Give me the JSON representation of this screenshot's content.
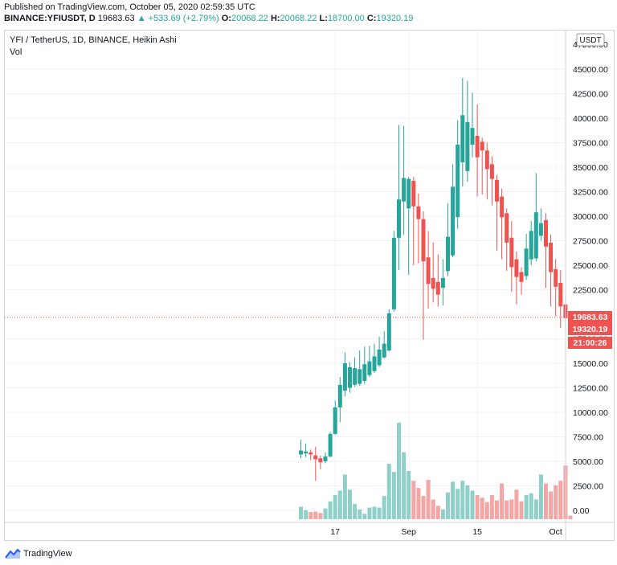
{
  "header": {
    "published": "Published on TradingView.com, October 05, 2020 02:59:35 UTC",
    "symbol": "BINANCE:YFIUSDT, D",
    "last": "19683.63",
    "change": "▲ +533.69 (+2.79%)",
    "open_label": "O:",
    "open": "20068.22",
    "high_label": "H:",
    "high": "20068.22",
    "low_label": "L:",
    "low": "18700.00",
    "close_label": "C:",
    "close": "19320.19"
  },
  "legend": {
    "title": "YFI / TetherUS, 1D, BINANCE, Heikin Ashi",
    "vol": "Vol"
  },
  "axis": {
    "currency": "USDT",
    "price_badge": "19683.63",
    "close_badge": "19320.19",
    "countdown_badge": "21:00:26"
  },
  "colors": {
    "up": "#26a69a",
    "down": "#ef5350",
    "up_vol": "#8fd0c8",
    "down_vol": "#f3a6a4",
    "grid": "#f0f3fa",
    "text": "#131722"
  },
  "footer": {
    "brand": "TradingView",
    "icon": "tradingview-logo-icon"
  },
  "chart_data": {
    "type": "candlestick",
    "style": "Heikin Ashi",
    "ylim": [
      -2000,
      47500
    ],
    "yticks": [
      0,
      2500,
      5000,
      7500,
      10000,
      12500,
      15000,
      17500,
      20000,
      22500,
      25000,
      27500,
      30000,
      32500,
      35000,
      37500,
      40000,
      42500,
      45000
    ],
    "ytick_labels": [
      "0.00",
      "2500.00",
      "5000.00",
      "7500.00",
      "10000.00",
      "12500.00",
      "15000.00",
      "17500.00",
      "20000.00",
      "22500.00",
      "25000.00",
      "27500.00",
      "30000.00",
      "32500.00",
      "35000.00",
      "37500.00",
      "40000.00",
      "42500.00",
      "45000.00"
    ],
    "y_top_partial": "47500.00",
    "xticks": [
      {
        "day": 17,
        "label": "17"
      },
      {
        "day": 32,
        "label": "Sep"
      },
      {
        "day": 46,
        "label": "15"
      },
      {
        "day": 62,
        "label": "Oct"
      }
    ],
    "last_price": 19683.63,
    "grid": true,
    "candles": [
      {
        "d": 10,
        "o": 5700,
        "h": 7200,
        "l": 5300,
        "c": 6100,
        "v": 1400
      },
      {
        "d": 11,
        "o": 5800,
        "h": 6800,
        "l": 5400,
        "c": 6000,
        "v": 1000
      },
      {
        "d": 12,
        "o": 5900,
        "h": 6200,
        "l": 5100,
        "c": 5700,
        "v": 800
      },
      {
        "d": 13,
        "o": 5600,
        "h": 6500,
        "l": 3000,
        "c": 5200,
        "v": 850
      },
      {
        "d": 14,
        "o": 5300,
        "h": 5600,
        "l": 4200,
        "c": 4900,
        "v": 700
      },
      {
        "d": 15,
        "o": 5000,
        "h": 5900,
        "l": 4800,
        "c": 5500,
        "v": 1200
      },
      {
        "d": 16,
        "o": 5500,
        "h": 8000,
        "l": 5400,
        "c": 7800,
        "v": 2000
      },
      {
        "d": 17,
        "o": 7800,
        "h": 11200,
        "l": 7700,
        "c": 10500,
        "v": 2700
      },
      {
        "d": 18,
        "o": 10500,
        "h": 13600,
        "l": 9000,
        "c": 12800,
        "v": 3200
      },
      {
        "d": 19,
        "o": 12200,
        "h": 16100,
        "l": 11600,
        "c": 15000,
        "v": 5000
      },
      {
        "d": 20,
        "o": 12500,
        "h": 15100,
        "l": 12000,
        "c": 14600,
        "v": 3300
      },
      {
        "d": 21,
        "o": 12800,
        "h": 15600,
        "l": 12600,
        "c": 14500,
        "v": 1700
      },
      {
        "d": 22,
        "o": 12900,
        "h": 16300,
        "l": 12700,
        "c": 14400,
        "v": 1100
      },
      {
        "d": 23,
        "o": 13200,
        "h": 16700,
        "l": 12900,
        "c": 14900,
        "v": 600
      },
      {
        "d": 24,
        "o": 13800,
        "h": 16800,
        "l": 13600,
        "c": 15200,
        "v": 1300
      },
      {
        "d": 25,
        "o": 14200,
        "h": 17000,
        "l": 14000,
        "c": 15700,
        "v": 1400
      },
      {
        "d": 26,
        "o": 14800,
        "h": 17700,
        "l": 14600,
        "c": 16400,
        "v": 1300
      },
      {
        "d": 27,
        "o": 15600,
        "h": 18300,
        "l": 15500,
        "c": 17000,
        "v": 2600
      },
      {
        "d": 28,
        "o": 16300,
        "h": 20500,
        "l": 16200,
        "c": 20100,
        "v": 6200
      },
      {
        "d": 29,
        "o": 20500,
        "h": 28500,
        "l": 20300,
        "c": 27800,
        "v": 5300
      },
      {
        "d": 30,
        "o": 27800,
        "h": 39300,
        "l": 24500,
        "c": 31700,
        "v": 10800
      },
      {
        "d": 31,
        "o": 31500,
        "h": 39200,
        "l": 28100,
        "c": 33900,
        "v": 7500
      },
      {
        "d": 32,
        "o": 30800,
        "h": 34000,
        "l": 24000,
        "c": 33800,
        "v": 5400
      },
      {
        "d": 33,
        "o": 33600,
        "h": 34000,
        "l": 25000,
        "c": 31000,
        "v": 4300
      },
      {
        "d": 34,
        "o": 31000,
        "h": 32300,
        "l": 25200,
        "c": 29700,
        "v": 3500
      },
      {
        "d": 35,
        "o": 29700,
        "h": 30500,
        "l": 17400,
        "c": 25400,
        "v": 2600
      },
      {
        "d": 36,
        "o": 25800,
        "h": 28500,
        "l": 20600,
        "c": 23100,
        "v": 4400
      },
      {
        "d": 37,
        "o": 23700,
        "h": 27300,
        "l": 21200,
        "c": 22600,
        "v": 2200
      },
      {
        "d": 38,
        "o": 23300,
        "h": 26100,
        "l": 20800,
        "c": 22000,
        "v": 1500
      },
      {
        "d": 39,
        "o": 22700,
        "h": 25600,
        "l": 20900,
        "c": 23700,
        "v": 1100
      },
      {
        "d": 40,
        "o": 24400,
        "h": 31300,
        "l": 23900,
        "c": 27900,
        "v": 3000
      },
      {
        "d": 41,
        "o": 26000,
        "h": 35300,
        "l": 25800,
        "c": 33000,
        "v": 4200
      },
      {
        "d": 42,
        "o": 29900,
        "h": 39800,
        "l": 28700,
        "c": 37300,
        "v": 3400
      },
      {
        "d": 43,
        "o": 35500,
        "h": 44100,
        "l": 33000,
        "c": 40300,
        "v": 4300
      },
      {
        "d": 44,
        "o": 34600,
        "h": 43800,
        "l": 33500,
        "c": 39600,
        "v": 3800
      },
      {
        "d": 45,
        "o": 37300,
        "h": 42600,
        "l": 36000,
        "c": 39000,
        "v": 3200
      },
      {
        "d": 46,
        "o": 38200,
        "h": 41400,
        "l": 32000,
        "c": 36000,
        "v": 2700
      },
      {
        "d": 47,
        "o": 37600,
        "h": 38000,
        "l": 32200,
        "c": 36700,
        "v": 2400
      },
      {
        "d": 48,
        "o": 36700,
        "h": 37500,
        "l": 31700,
        "c": 34800,
        "v": 1900
      },
      {
        "d": 49,
        "o": 35300,
        "h": 36100,
        "l": 31100,
        "c": 33800,
        "v": 2700
      },
      {
        "d": 50,
        "o": 33700,
        "h": 34200,
        "l": 26500,
        "c": 31500,
        "v": 2100
      },
      {
        "d": 51,
        "o": 32000,
        "h": 32800,
        "l": 25600,
        "c": 29900,
        "v": 4000
      },
      {
        "d": 52,
        "o": 30300,
        "h": 30800,
        "l": 24400,
        "c": 27300,
        "v": 2100
      },
      {
        "d": 53,
        "o": 27800,
        "h": 29500,
        "l": 22300,
        "c": 24800,
        "v": 2200
      },
      {
        "d": 54,
        "o": 25600,
        "h": 26400,
        "l": 21000,
        "c": 23800,
        "v": 3300
      },
      {
        "d": 55,
        "o": 24300,
        "h": 24800,
        "l": 22000,
        "c": 23300,
        "v": 2000
      },
      {
        "d": 56,
        "o": 23900,
        "h": 28200,
        "l": 23500,
        "c": 26700,
        "v": 2700
      },
      {
        "d": 57,
        "o": 25600,
        "h": 29500,
        "l": 25000,
        "c": 28500,
        "v": 2900
      },
      {
        "d": 58,
        "o": 25700,
        "h": 34400,
        "l": 25400,
        "c": 30400,
        "v": 2200
      },
      {
        "d": 59,
        "o": 28000,
        "h": 30800,
        "l": 27500,
        "c": 29300,
        "v": 5000
      },
      {
        "d": 60,
        "o": 29600,
        "h": 30300,
        "l": 22700,
        "c": 26900,
        "v": 4000
      },
      {
        "d": 61,
        "o": 27300,
        "h": 28100,
        "l": 20800,
        "c": 24300,
        "v": 3100
      },
      {
        "d": 62,
        "o": 24600,
        "h": 25600,
        "l": 19800,
        "c": 22800,
        "v": 3800
      },
      {
        "d": 63,
        "o": 23200,
        "h": 24500,
        "l": 18600,
        "c": 20800,
        "v": 4300
      },
      {
        "d": 64,
        "o": 21000,
        "h": 21900,
        "l": 18900,
        "c": 19600,
        "v": 6000
      },
      {
        "d": 65,
        "o": 20068.22,
        "h": 20068.22,
        "l": 18700,
        "c": 19320.19,
        "v": 400
      }
    ]
  }
}
